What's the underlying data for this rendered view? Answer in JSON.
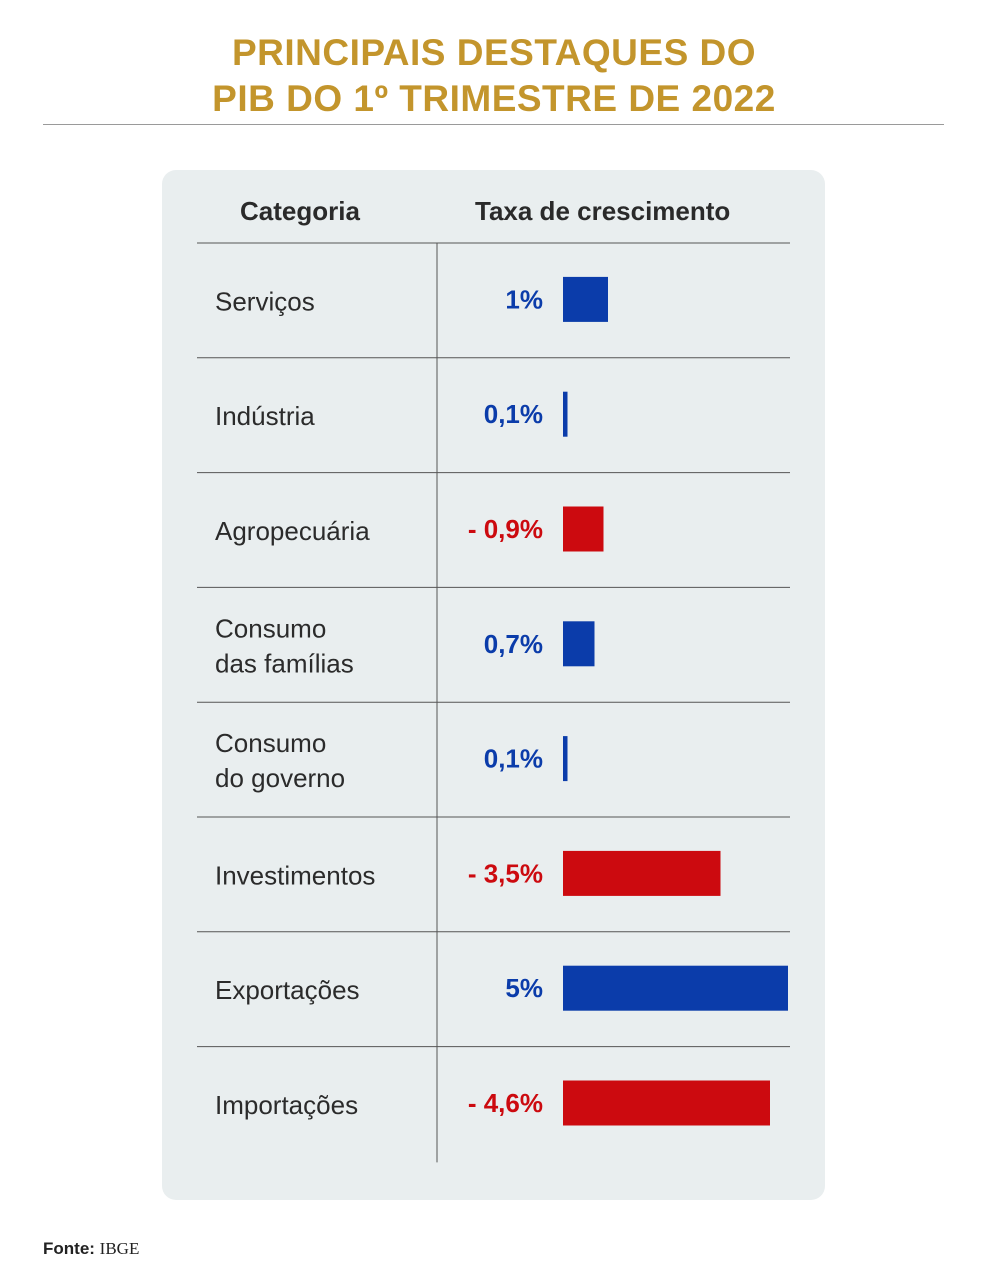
{
  "title": {
    "line1": "PRINCIPAIS DESTAQUES DO",
    "line2": "PIB DO 1º TRIMESTRE DE 2022"
  },
  "table": {
    "col_category": "Categoria",
    "col_rate": "Taxa de crescimento"
  },
  "colors": {
    "positive": "#0b3caa",
    "negative": "#cc0a0f",
    "title": "#c3952c",
    "card": "#e9eeef"
  },
  "chart_data": {
    "type": "bar",
    "orientation": "horizontal",
    "categories": [
      [
        "Serviços"
      ],
      [
        "Indústria"
      ],
      [
        "Agropecuária"
      ],
      [
        "Consumo",
        "das famílias"
      ],
      [
        "Consumo",
        "do governo"
      ],
      [
        "Investimentos"
      ],
      [
        "Exportações"
      ],
      [
        "Importações"
      ]
    ],
    "values": [
      1,
      0.1,
      -0.9,
      0.7,
      0.1,
      -3.5,
      5,
      -4.6
    ],
    "value_labels": [
      "1%",
      "0,1%",
      "- 0,9%",
      "0,7%",
      "0,1%",
      "- 3,5%",
      "5%",
      "- 4,6%"
    ],
    "bar_length": "absolute value",
    "grid": false
  },
  "source": {
    "label": "Fonte:",
    "value": "IBGE"
  }
}
